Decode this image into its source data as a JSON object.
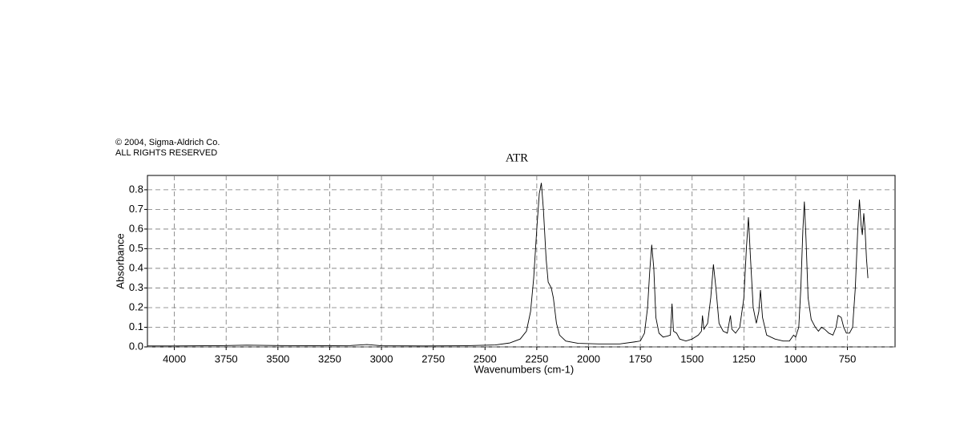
{
  "header": {
    "copyright": "© 2004, Sigma-Aldrich Co.",
    "rights": "ALL RIGHTS RESERVED"
  },
  "chart_data": {
    "type": "line",
    "title": "ATR",
    "x_label": "Wavenumbers (cm-1)",
    "y_label": "Absorbance",
    "xlim": [
      4130,
      520
    ],
    "ylim": [
      0,
      0.873
    ],
    "xticks": [
      4000,
      3750,
      3500,
      3250,
      3000,
      2750,
      2500,
      2250,
      2000,
      1750,
      1500,
      1250,
      1000,
      750
    ],
    "yticks": [
      {
        "value": 0,
        "label": "0.0"
      },
      0.1,
      0.2,
      0.3,
      0.4,
      0.5,
      0.6,
      0.7,
      0.8
    ],
    "grid": true,
    "color": "#000000",
    "x": [
      4130,
      4000,
      3800,
      3650,
      3500,
      3300,
      3150,
      3070,
      3000,
      2800,
      2600,
      2450,
      2380,
      2330,
      2300,
      2280,
      2265,
      2250,
      2238,
      2228,
      2218,
      2205,
      2195,
      2180,
      2170,
      2155,
      2140,
      2110,
      2050,
      1950,
      1850,
      1780,
      1750,
      1730,
      1715,
      1705,
      1695,
      1685,
      1675,
      1660,
      1640,
      1620,
      1605,
      1597,
      1590,
      1575,
      1560,
      1530,
      1500,
      1470,
      1455,
      1450,
      1443,
      1425,
      1410,
      1397,
      1385,
      1370,
      1350,
      1330,
      1315,
      1308,
      1290,
      1270,
      1250,
      1238,
      1228,
      1218,
      1205,
      1190,
      1178,
      1170,
      1160,
      1140,
      1100,
      1060,
      1030,
      1010,
      1000,
      985,
      975,
      965,
      958,
      950,
      940,
      925,
      905,
      890,
      875,
      860,
      840,
      820,
      805,
      795,
      780,
      768,
      755,
      740,
      725,
      712,
      700,
      692,
      684,
      678,
      671,
      665,
      658,
      651
    ],
    "values": [
      0.005,
      0.005,
      0.006,
      0.009,
      0.007,
      0.006,
      0.007,
      0.012,
      0.006,
      0.005,
      0.006,
      0.01,
      0.02,
      0.04,
      0.08,
      0.18,
      0.35,
      0.6,
      0.78,
      0.835,
      0.7,
      0.45,
      0.33,
      0.3,
      0.25,
      0.12,
      0.06,
      0.03,
      0.018,
      0.015,
      0.015,
      0.025,
      0.03,
      0.07,
      0.2,
      0.38,
      0.52,
      0.4,
      0.15,
      0.07,
      0.05,
      0.055,
      0.06,
      0.22,
      0.08,
      0.07,
      0.04,
      0.03,
      0.04,
      0.06,
      0.08,
      0.16,
      0.09,
      0.12,
      0.25,
      0.42,
      0.3,
      0.12,
      0.08,
      0.07,
      0.16,
      0.09,
      0.07,
      0.1,
      0.25,
      0.5,
      0.66,
      0.45,
      0.2,
      0.12,
      0.18,
      0.29,
      0.15,
      0.06,
      0.04,
      0.03,
      0.03,
      0.06,
      0.05,
      0.1,
      0.3,
      0.6,
      0.74,
      0.55,
      0.25,
      0.14,
      0.1,
      0.08,
      0.1,
      0.09,
      0.07,
      0.06,
      0.1,
      0.16,
      0.15,
      0.1,
      0.07,
      0.07,
      0.1,
      0.3,
      0.6,
      0.75,
      0.62,
      0.57,
      0.68,
      0.6,
      0.45,
      0.35
    ]
  }
}
